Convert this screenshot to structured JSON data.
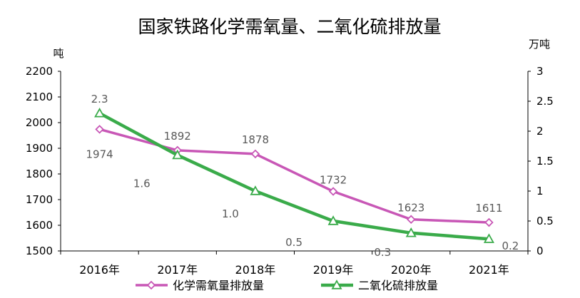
{
  "chart_data": {
    "type": "line",
    "title": "国家铁路化学需氧量、二氧化硫排放量",
    "categories": [
      "2016年",
      "2017年",
      "2018年",
      "2019年",
      "2020年",
      "2021年"
    ],
    "y_left": {
      "label": "吨",
      "ylim": [
        1500,
        2200
      ],
      "ticks": [
        1500,
        1600,
        1700,
        1800,
        1900,
        2000,
        2100,
        2200
      ]
    },
    "y_right": {
      "label": "万吨",
      "ylim": [
        0,
        3
      ],
      "ticks": [
        "0",
        "0.5",
        "1",
        "1.5",
        "2",
        "2.5",
        "3"
      ]
    },
    "series": [
      {
        "name": "化学需氧量排放量",
        "axis": "left",
        "color": "#c857b6",
        "marker": "diamond",
        "values": [
          1974,
          1892,
          1878,
          1732,
          1623,
          1611
        ],
        "labels": [
          "1974",
          "1892",
          "1878",
          "1732",
          "1623",
          "1611"
        ]
      },
      {
        "name": "二氧化硫排放量",
        "axis": "right",
        "color": "#3aab4a",
        "marker": "triangle",
        "values": [
          2.3,
          1.6,
          1.0,
          0.5,
          0.3,
          0.2
        ],
        "labels": [
          "2.3",
          "1.6",
          "1.0",
          "0.5",
          "0.3",
          "0.2"
        ]
      }
    ],
    "legend": "bottom",
    "grid": false
  }
}
